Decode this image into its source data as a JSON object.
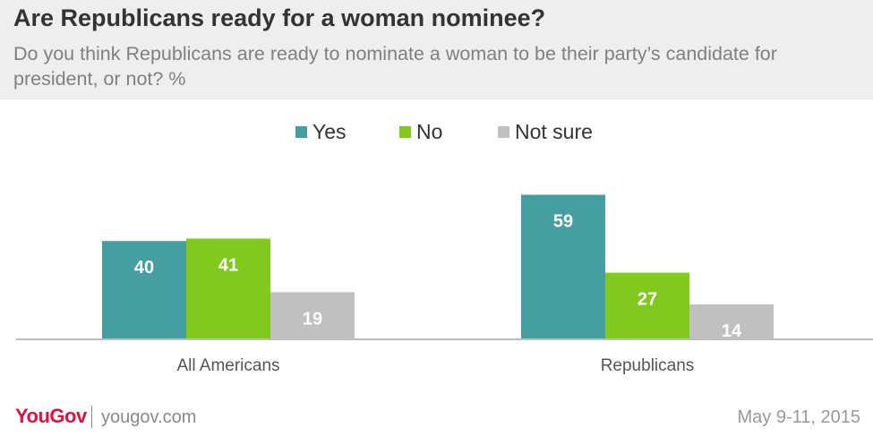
{
  "header": {
    "title": "Are Republicans ready for a woman nominee?",
    "subtitle": "Do you think Republicans are ready to nominate a woman to be their party’s candidate for president, or not? %"
  },
  "legend": [
    {
      "label": "Yes",
      "color": "#459fa1"
    },
    {
      "label": "No",
      "color": "#81c91f"
    },
    {
      "label": "Not sure",
      "color": "#c0c0c0"
    }
  ],
  "chart_data": {
    "type": "bar",
    "title": "Are Republicans ready for a woman nominee?",
    "subtitle": "Do you think Republicans are ready to nominate a woman to be their party’s candidate for president, or not? %",
    "categories": [
      "All Americans",
      "Republicans"
    ],
    "series": [
      {
        "name": "Yes",
        "values": [
          40,
          59
        ],
        "color": "#459fa1"
      },
      {
        "name": "No",
        "values": [
          41,
          27
        ],
        "color": "#81c91f"
      },
      {
        "name": "Not sure",
        "values": [
          19,
          14
        ],
        "color": "#c0c0c0"
      }
    ],
    "ylim": [
      0,
      70
    ],
    "grid": false,
    "legend_position": "top-center"
  },
  "footer": {
    "logo": "YouGov",
    "url": "yougov.com",
    "date": "May 9-11, 2015"
  }
}
